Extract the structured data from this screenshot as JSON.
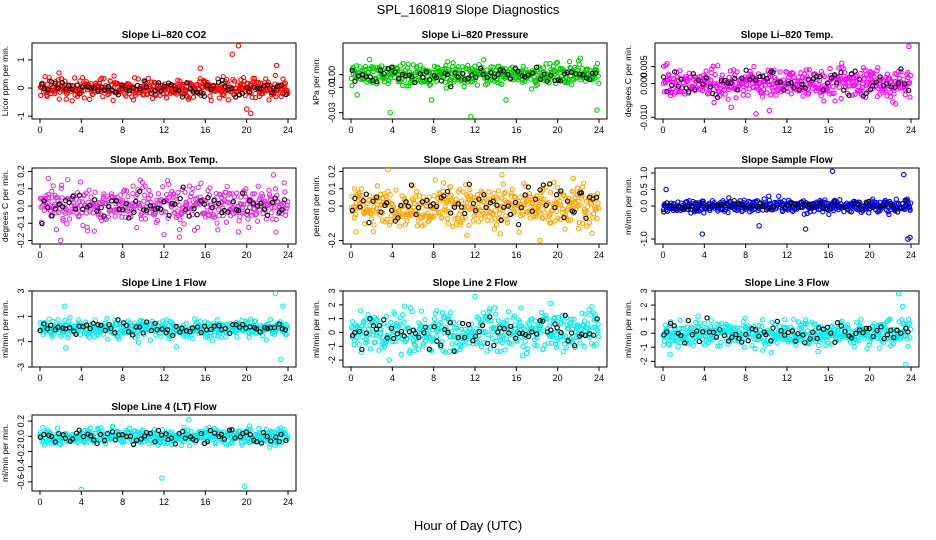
{
  "figure": {
    "title": "SPL_160819  Slope Diagnostics",
    "xlabel": "Hour of Day (UTC)"
  },
  "chart_data": [
    {
      "type": "scatter",
      "title": "Slope Li–820 CO2",
      "ylabel": "Licor ppm per min.",
      "color": "#ff0000",
      "xlim": [
        0,
        24
      ],
      "ylim": [
        -1.1,
        1.6
      ],
      "yticks": [
        -1,
        0,
        1
      ],
      "yticklabels": [
        "-1",
        "0",
        "1"
      ],
      "xticks": [
        0,
        4,
        8,
        12,
        16,
        20,
        24
      ],
      "spread": 0.18,
      "outliers": [
        [
          19.2,
          1.5
        ],
        [
          18.6,
          1.2
        ],
        [
          20.4,
          -0.9
        ],
        [
          22.9,
          0.8
        ],
        [
          15.5,
          0.7
        ],
        [
          20.0,
          -0.75
        ]
      ]
    },
    {
      "type": "scatter",
      "title": "Slope Li–820 Pressure",
      "ylabel": "kPa per min.",
      "color": "#00cc00",
      "xlim": [
        0,
        24
      ],
      "ylim": [
        -0.035,
        0.025
      ],
      "yticks": [
        -0.03,
        -0.01,
        0.0
      ],
      "yticklabels": [
        "-0.03",
        "-0.01",
        "0.00"
      ],
      "xticks": [
        0,
        4,
        8,
        12,
        16,
        20,
        24
      ],
      "spread": 0.004,
      "outliers": [
        [
          3.8,
          -0.03
        ],
        [
          7.8,
          -0.02
        ],
        [
          11.6,
          -0.033
        ],
        [
          15.0,
          -0.02
        ],
        [
          23.8,
          -0.028
        ],
        [
          0.6,
          -0.016
        ],
        [
          22.2,
          0.013
        ],
        [
          1.8,
          0.012
        ]
      ]
    },
    {
      "type": "scatter",
      "title": "Slope Li–820 Temp.",
      "ylabel": "degrees C per min.",
      "color": "#ff00ff",
      "xlim": [
        0,
        24
      ],
      "ylim": [
        -0.0105,
        0.012
      ],
      "yticks": [
        -0.01,
        0.0,
        0.005
      ],
      "yticklabels": [
        "-0.010",
        "0.000",
        "0.005"
      ],
      "xticks": [
        0,
        4,
        8,
        12,
        16,
        20,
        24
      ],
      "spread": 0.0022,
      "outliers": [
        [
          23.8,
          0.011
        ],
        [
          9.0,
          -0.009
        ],
        [
          10.3,
          -0.008
        ],
        [
          17.3,
          0.006
        ],
        [
          22.5,
          -0.006
        ],
        [
          6.6,
          -0.007
        ]
      ]
    },
    {
      "type": "scatter",
      "title": "Slope Amb. Box Temp.",
      "ylabel": "degrees C per min.",
      "color": "#dd33dd",
      "xlim": [
        0,
        24
      ],
      "ylim": [
        -0.22,
        0.22
      ],
      "yticks": [
        -0.2,
        -0.1,
        0.0,
        0.1,
        0.2
      ],
      "yticklabels": [
        "-0.2",
        "-0.1",
        "0.0",
        "0.1",
        "0.2"
      ],
      "xticks": [
        0,
        4,
        8,
        12,
        16,
        20,
        24
      ],
      "spread": 0.055,
      "outliers": [
        [
          22.6,
          0.18
        ],
        [
          2.0,
          -0.2
        ],
        [
          13.5,
          -0.18
        ],
        [
          19.2,
          -0.15
        ],
        [
          0.8,
          0.16
        ],
        [
          9.7,
          0.15
        ]
      ]
    },
    {
      "type": "scatter",
      "title": "Slope Gas Stream RH",
      "ylabel": "percent per min.",
      "color": "#ffa500",
      "xlim": [
        0,
        24
      ],
      "ylim": [
        -0.22,
        0.22
      ],
      "yticks": [
        -0.2,
        0.0,
        0.1,
        0.2
      ],
      "yticklabels": [
        "-0.2",
        "0.0",
        "0.1",
        "0.2"
      ],
      "xticks": [
        0,
        4,
        8,
        12,
        16,
        20,
        24
      ],
      "spread": 0.06,
      "outliers": [
        [
          3.6,
          0.21
        ],
        [
          18.3,
          -0.2
        ],
        [
          0.5,
          -0.15
        ],
        [
          21.5,
          0.16
        ],
        [
          11.2,
          -0.17
        ],
        [
          14.6,
          0.18
        ]
      ]
    },
    {
      "type": "scatter",
      "title": "Slope Sample Flow",
      "ylabel": "ml/min per min.",
      "color": "#0000ff",
      "xlim": [
        0,
        24
      ],
      "ylim": [
        -1.15,
        1.15
      ],
      "yticks": [
        -1.0,
        0.0,
        0.5,
        1.0
      ],
      "yticklabels": [
        "-1.0",
        "0.0",
        "0.5",
        "1.0"
      ],
      "xticks": [
        0,
        4,
        8,
        12,
        16,
        20,
        24
      ],
      "spread": 0.1,
      "outliers": [
        [
          3.8,
          -0.85
        ],
        [
          16.4,
          1.05
        ],
        [
          23.3,
          0.95
        ],
        [
          23.7,
          -1.0
        ],
        [
          23.9,
          -0.95
        ],
        [
          9.3,
          -0.6
        ],
        [
          13.8,
          -0.7
        ],
        [
          0.3,
          0.5
        ]
      ]
    },
    {
      "type": "scatter",
      "title": "Slope Line 1 Flow",
      "ylabel": "ml/min per min.",
      "color": "#00eeee",
      "xlim": [
        0,
        24
      ],
      "ylim": [
        -3.0,
        3.0
      ],
      "yticks": [
        -3,
        -1,
        1,
        3
      ],
      "yticklabels": [
        "-3",
        "-1",
        "1",
        "3"
      ],
      "xticks": [
        0,
        4,
        8,
        12,
        16,
        20,
        24
      ],
      "spread": 0.35,
      "outliers": [
        [
          22.8,
          2.8
        ],
        [
          23.3,
          -2.4
        ],
        [
          2.4,
          1.8
        ],
        [
          2.5,
          -1.5
        ],
        [
          13.2,
          -1.4
        ],
        [
          23.5,
          1.8
        ]
      ]
    },
    {
      "type": "scatter",
      "title": "Slope Line 2 Flow",
      "ylabel": "ml/min per min.",
      "color": "#00eeee",
      "xlim": [
        0,
        24
      ],
      "ylim": [
        -2.5,
        3.0
      ],
      "yticks": [
        -2,
        -1,
        0,
        1,
        2,
        3
      ],
      "yticklabels": [
        "-2",
        "-1",
        "0",
        "1",
        "2",
        "3"
      ],
      "xticks": [
        0,
        4,
        8,
        12,
        16,
        20,
        24
      ],
      "spread": 0.7,
      "outliers": [
        [
          12.0,
          2.6
        ],
        [
          16.6,
          -1.7
        ],
        [
          3.7,
          -2.0
        ],
        [
          9.5,
          -1.4
        ],
        [
          19.3,
          2.1
        ],
        [
          5.2,
          1.9
        ]
      ]
    },
    {
      "type": "scatter",
      "title": "Slope Line 3 Flow",
      "ylabel": "ml/min per min.",
      "color": "#00eeee",
      "xlim": [
        0,
        24
      ],
      "ylim": [
        -2.4,
        3.0
      ],
      "yticks": [
        -2,
        -1,
        0,
        1,
        2,
        3
      ],
      "yticklabels": [
        "-2",
        "-1",
        "0",
        "1",
        "2",
        "3"
      ],
      "xticks": [
        0,
        4,
        8,
        12,
        16,
        20,
        24
      ],
      "spread": 0.45,
      "outliers": [
        [
          22.8,
          2.8
        ],
        [
          23.5,
          -2.2
        ],
        [
          0.7,
          -1.5
        ],
        [
          23.2,
          1.9
        ],
        [
          3.4,
          1.2
        ],
        [
          15.0,
          -1.3
        ]
      ]
    },
    {
      "type": "scatter",
      "title": "Slope Line 4 (LT) Flow",
      "ylabel": "ml/min per min.",
      "color": "#00eeee",
      "xlim": [
        0,
        24
      ],
      "ylim": [
        -0.72,
        0.28
      ],
      "yticks": [
        -0.6,
        -0.4,
        -0.2,
        0.0,
        0.2
      ],
      "yticklabels": [
        "-0.6",
        "-0.4",
        "-0.2",
        "0.0",
        "0.2"
      ],
      "xticks": [
        0,
        4,
        8,
        12,
        16,
        20,
        24
      ],
      "spread": 0.055,
      "outliers": [
        [
          4.0,
          -0.7
        ],
        [
          11.8,
          -0.55
        ],
        [
          19.8,
          -0.66
        ],
        [
          14.4,
          0.22
        ]
      ]
    }
  ]
}
